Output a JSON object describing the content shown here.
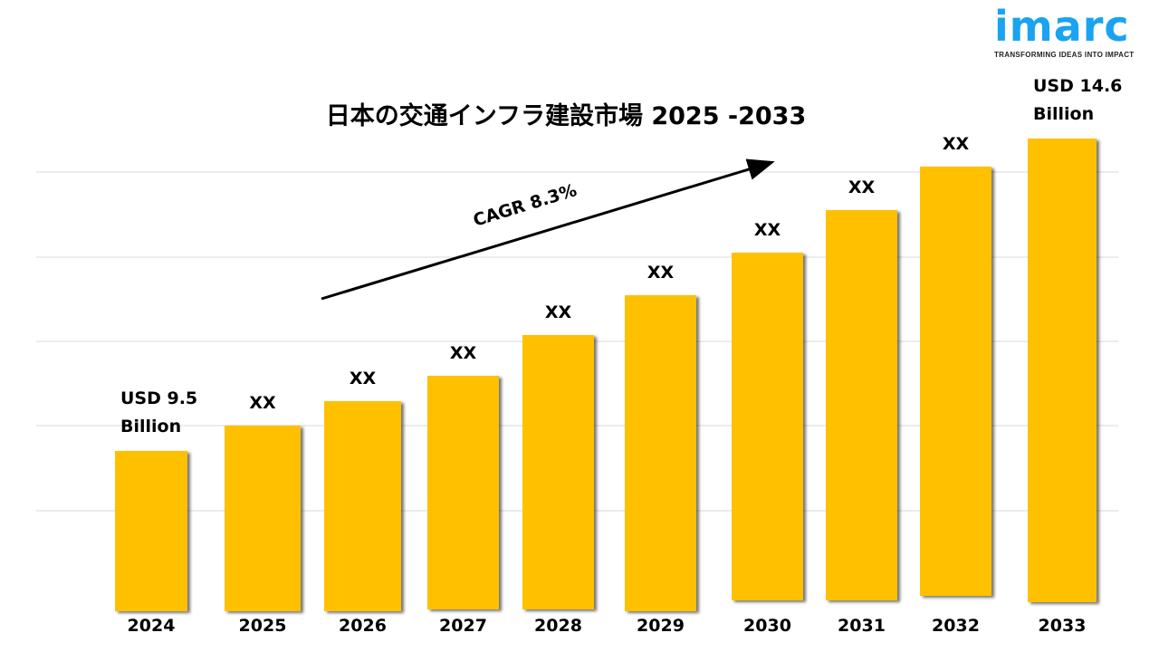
{
  "logo": {
    "word": "imarc",
    "tagline": "TRANSFORMING IDEAS INTO IMPACT",
    "color": "#1aa3f0"
  },
  "chart_data": {
    "type": "bar",
    "title": "日本の交通インフラ建設市場 2025 -2033",
    "categories": [
      "2024",
      "2025",
      "2026",
      "2027",
      "2028",
      "2029",
      "2030",
      "2031",
      "2032",
      "2033"
    ],
    "values": [
      9.5,
      null,
      null,
      null,
      null,
      null,
      null,
      null,
      null,
      14.6
    ],
    "data_labels": [
      "USD 9.5 Billion",
      "XX",
      "XX",
      "XX",
      "XX",
      "XX",
      "XX",
      "XX",
      "XX",
      "USD 14.6 Billion"
    ],
    "unit": "USD Billion",
    "annotation": "CAGR 8.3%",
    "bar_color": "#ffc000",
    "grid": true,
    "legend": "none"
  }
}
